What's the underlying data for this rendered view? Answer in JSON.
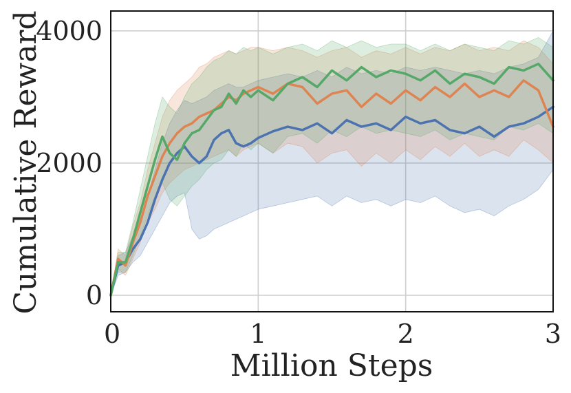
{
  "chart_data": {
    "type": "line",
    "title": "",
    "xlabel": "Million Steps",
    "ylabel": "Cumulative Reward",
    "xlim": [
      0,
      3
    ],
    "ylim": [
      -250,
      4300
    ],
    "xticks": [
      0,
      1,
      2,
      3
    ],
    "xtick_labels": [
      "0",
      "1",
      "2",
      "3"
    ],
    "yticks": [
      0,
      2000,
      4000
    ],
    "ytick_labels": [
      "0",
      "2000",
      "4000"
    ],
    "grid": true,
    "legend": "none",
    "series": [
      {
        "color": "#4c72b0",
        "x": [
          0,
          0.05,
          0.1,
          0.15,
          0.2,
          0.25,
          0.3,
          0.35,
          0.4,
          0.45,
          0.5,
          0.55,
          0.6,
          0.65,
          0.7,
          0.75,
          0.8,
          0.85,
          0.9,
          0.95,
          1.0,
          1.1,
          1.2,
          1.3,
          1.4,
          1.5,
          1.6,
          1.7,
          1.8,
          1.9,
          2.0,
          2.1,
          2.2,
          2.3,
          2.4,
          2.5,
          2.6,
          2.7,
          2.8,
          2.9,
          3.0
        ],
        "y": [
          0,
          450,
          500,
          700,
          850,
          1100,
          1450,
          1750,
          2000,
          2150,
          2250,
          2100,
          2000,
          2100,
          2350,
          2450,
          2500,
          2300,
          2250,
          2300,
          2380,
          2480,
          2550,
          2500,
          2600,
          2450,
          2650,
          2550,
          2600,
          2500,
          2700,
          2600,
          2650,
          2500,
          2450,
          2550,
          2400,
          2550,
          2600,
          2700,
          2850
        ],
        "lower": [
          0,
          300,
          350,
          500,
          600,
          800,
          1000,
          1200,
          1400,
          1500,
          1550,
          1000,
          850,
          900,
          1000,
          1050,
          1100,
          1150,
          1200,
          1250,
          1300,
          1350,
          1400,
          1450,
          1500,
          1350,
          1500,
          1400,
          1450,
          1350,
          1450,
          1400,
          1500,
          1350,
          1250,
          1300,
          1200,
          1350,
          1450,
          1600,
          1900
        ],
        "upper": [
          0,
          600,
          650,
          900,
          1150,
          1500,
          1900,
          2300,
          2600,
          2800,
          2950,
          2900,
          2950,
          3000,
          3100,
          3150,
          3200,
          3150,
          3150,
          3200,
          3250,
          3300,
          3350,
          3300,
          3400,
          3300,
          3450,
          3350,
          3400,
          3350,
          3450,
          3400,
          3450,
          3400,
          3350,
          3400,
          3350,
          3450,
          3500,
          3600,
          4000
        ]
      },
      {
        "color": "#dd8452",
        "x": [
          0,
          0.05,
          0.1,
          0.15,
          0.2,
          0.25,
          0.3,
          0.35,
          0.4,
          0.45,
          0.5,
          0.55,
          0.6,
          0.65,
          0.7,
          0.75,
          0.8,
          0.85,
          0.9,
          0.95,
          1.0,
          1.1,
          1.2,
          1.3,
          1.4,
          1.5,
          1.6,
          1.7,
          1.8,
          1.9,
          2.0,
          2.1,
          2.2,
          2.3,
          2.4,
          2.5,
          2.6,
          2.7,
          2.8,
          2.9,
          3.0
        ],
        "y": [
          0,
          550,
          450,
          800,
          1100,
          1500,
          1800,
          2100,
          2300,
          2450,
          2550,
          2600,
          2700,
          2750,
          2800,
          2900,
          3000,
          2950,
          3050,
          3100,
          3150,
          3050,
          3200,
          3150,
          2900,
          3050,
          3100,
          2850,
          3050,
          2900,
          3100,
          2950,
          3150,
          3000,
          3200,
          3000,
          3100,
          3000,
          3250,
          3100,
          2550
        ],
        "lower": [
          0,
          400,
          300,
          550,
          800,
          1100,
          1300,
          1550,
          1700,
          1800,
          1900,
          1950,
          2000,
          2050,
          2100,
          2150,
          2200,
          2100,
          2200,
          2250,
          2300,
          2150,
          2300,
          2250,
          2000,
          2150,
          2200,
          1950,
          2150,
          2000,
          2200,
          2050,
          2250,
          2100,
          2300,
          2100,
          2200,
          2100,
          2350,
          2200,
          2000
        ],
        "upper": [
          0,
          700,
          600,
          1050,
          1400,
          1900,
          2300,
          2700,
          2950,
          3100,
          3200,
          3300,
          3450,
          3500,
          3600,
          3650,
          3700,
          3650,
          3700,
          3750,
          3750,
          3700,
          3750,
          3700,
          3600,
          3700,
          3750,
          3600,
          3700,
          3650,
          3750,
          3650,
          3750,
          3700,
          3800,
          3700,
          3750,
          3700,
          3850,
          3750,
          3500
        ]
      },
      {
        "color": "#55a868",
        "x": [
          0,
          0.05,
          0.1,
          0.15,
          0.2,
          0.25,
          0.3,
          0.35,
          0.4,
          0.45,
          0.5,
          0.55,
          0.6,
          0.65,
          0.7,
          0.75,
          0.8,
          0.85,
          0.9,
          0.95,
          1.0,
          1.1,
          1.2,
          1.3,
          1.4,
          1.5,
          1.6,
          1.7,
          1.8,
          1.9,
          2.0,
          2.1,
          2.2,
          2.3,
          2.4,
          2.5,
          2.6,
          2.7,
          2.8,
          2.9,
          3.0
        ],
        "y": [
          0,
          500,
          500,
          850,
          1250,
          1650,
          2050,
          2400,
          2150,
          2050,
          2300,
          2450,
          2500,
          2650,
          2800,
          2850,
          3050,
          2900,
          3100,
          3000,
          3100,
          2950,
          3200,
          3300,
          3150,
          3400,
          3250,
          3450,
          3300,
          3400,
          3350,
          3250,
          3400,
          3200,
          3350,
          3300,
          3200,
          3450,
          3400,
          3500,
          3250
        ],
        "lower": [
          0,
          350,
          350,
          600,
          900,
          1200,
          1500,
          1700,
          1450,
          1350,
          1500,
          1650,
          1750,
          1900,
          2000,
          2050,
          2200,
          2100,
          2300,
          2200,
          2300,
          2150,
          2400,
          2450,
          2300,
          2500,
          2400,
          2550,
          2450,
          2500,
          2450,
          2400,
          2500,
          2350,
          2450,
          2400,
          2350,
          2550,
          2500,
          2600,
          2450
        ],
        "upper": [
          0,
          650,
          650,
          1100,
          1600,
          2100,
          2600,
          3000,
          2850,
          2750,
          3000,
          3200,
          3300,
          3450,
          3550,
          3600,
          3700,
          3650,
          3750,
          3700,
          3750,
          3650,
          3750,
          3800,
          3700,
          3850,
          3750,
          3850,
          3750,
          3800,
          3800,
          3700,
          3800,
          3700,
          3800,
          3750,
          3700,
          3850,
          3800,
          3900,
          3750
        ]
      }
    ]
  }
}
